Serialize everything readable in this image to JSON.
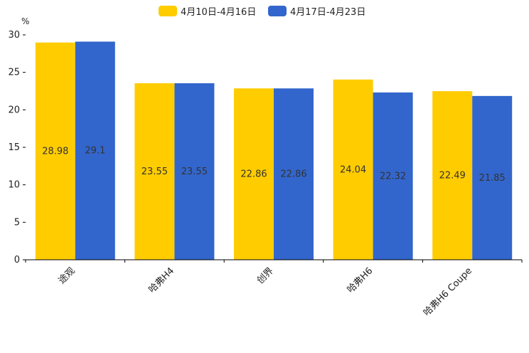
{
  "chart_data": {
    "type": "bar",
    "title": "",
    "xlabel": "",
    "ylabel": "%",
    "ylim": [
      0,
      30
    ],
    "yticks": [
      0,
      5,
      10,
      15,
      20,
      25,
      30
    ],
    "categories": [
      "途观",
      "哈弗H4",
      "创界",
      "哈弗H6",
      "哈弗H6 Coupe"
    ],
    "series": [
      {
        "name": "4月10日-4月16日",
        "color": "#FFCC00",
        "values": [
          28.98,
          23.55,
          22.86,
          24.04,
          22.49
        ],
        "labels": [
          "28.98",
          "23.55",
          "22.86",
          "24.04",
          "22.49"
        ]
      },
      {
        "name": "4月17日-4月23日",
        "color": "#3366CC",
        "values": [
          29.1,
          23.55,
          22.86,
          22.32,
          21.85
        ],
        "labels": [
          "29.1",
          "23.55",
          "22.86",
          "22.32",
          "21.85"
        ]
      }
    ],
    "legend": "top-center",
    "grid": false
  }
}
